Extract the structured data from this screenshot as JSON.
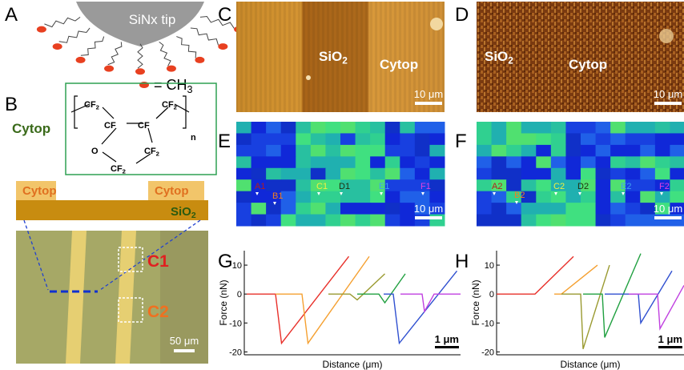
{
  "panels": {
    "A": {
      "letter": "A",
      "tip": "SiNx tip",
      "legend": {
        "text": "= CH",
        "sub": "3"
      }
    },
    "B": {
      "letter": "B",
      "molecule_name": "Cytop",
      "structure": [
        {
          "text": "CF",
          "sub": "2"
        },
        {
          "text": "CF",
          "sub": "2"
        },
        {
          "text": "CF"
        },
        {
          "text": "CF"
        },
        {
          "text": "O"
        },
        {
          "text": "CF",
          "sub": "2"
        },
        {
          "text": "CF",
          "sub": "2"
        },
        {
          "text": "n"
        }
      ],
      "stack": {
        "left": "Cytop",
        "right": "Cytop",
        "substrate": {
          "text": "SiO",
          "sub": "2"
        }
      },
      "micrograph": {
        "box1": "C1",
        "box2": "C2",
        "scale": "50 μm"
      }
    },
    "C": {
      "letter": "C",
      "left": {
        "text": "SiO",
        "sub": "2"
      },
      "right": "Cytop",
      "scale": "10 μm"
    },
    "D": {
      "letter": "D",
      "left": {
        "text": "SiO",
        "sub": "2"
      },
      "right": "Cytop",
      "scale": "10 μm"
    },
    "E": {
      "letter": "E",
      "markers": [
        "A1",
        "B1",
        "C1",
        "D1",
        "E1",
        "F1"
      ],
      "scale": "10 μm"
    },
    "F": {
      "letter": "F",
      "markers": [
        "A2",
        "B2",
        "C2",
        "D2",
        "E2",
        "F2"
      ],
      "scale": "10 μm"
    },
    "G": {
      "letter": "G"
    },
    "H": {
      "letter": "H"
    }
  },
  "chart_data": [
    {
      "type": "line",
      "ylabel": "Force (nN)",
      "xlabel": "Distance (μm)",
      "scale_bar": "1 μm",
      "xlim": [
        0,
        9
      ],
      "ylim": [
        -21,
        15
      ],
      "yticks": [
        10,
        0,
        -10,
        -20
      ],
      "series": [
        {
          "color": "#e8302a",
          "x": [
            0.1,
            1.3,
            1.55,
            4.35
          ],
          "values": [
            0,
            0,
            -17,
            13
          ]
        },
        {
          "color": "#f5a030",
          "x": [
            1.3,
            2.4,
            2.65,
            5.2
          ],
          "values": [
            0,
            0,
            -17,
            13
          ]
        },
        {
          "color": "#9a9a30",
          "x": [
            3.5,
            4.4,
            4.7,
            5.85
          ],
          "values": [
            0,
            0,
            -2,
            7
          ]
        },
        {
          "color": "#20a040",
          "x": [
            4.7,
            5.6,
            5.85,
            6.7
          ],
          "values": [
            0,
            0,
            -3,
            7
          ]
        },
        {
          "color": "#3050d0",
          "x": [
            5.8,
            6.2,
            6.45,
            8.85
          ],
          "values": [
            0,
            0,
            -17,
            8
          ]
        },
        {
          "color": "#c040e0",
          "x": [
            6.5,
            7.4,
            7.5,
            7.9,
            9
          ],
          "values": [
            0,
            0,
            -6,
            0,
            0
          ]
        }
      ]
    },
    {
      "type": "line",
      "ylabel": "Force (nN)",
      "xlabel": "Distance (μm)",
      "scale_bar": "1 μm",
      "xlim": [
        0,
        7.8
      ],
      "ylim": [
        -21,
        15
      ],
      "yticks": [
        10,
        0,
        -10,
        -20
      ],
      "series": [
        {
          "color": "#e8302a",
          "x": [
            0,
            1.6,
            3.2
          ],
          "values": [
            0,
            0,
            13
          ]
        },
        {
          "color": "#f5a030",
          "x": [
            2.4,
            2.7,
            4.2
          ],
          "values": [
            0,
            0,
            10
          ]
        },
        {
          "color": "#9a9a30",
          "x": [
            2.7,
            3.5,
            3.6,
            4.7
          ],
          "values": [
            0,
            0,
            -19,
            10
          ]
        },
        {
          "color": "#20a040",
          "x": [
            3.6,
            4.4,
            4.5,
            6.0
          ],
          "values": [
            0,
            0,
            -15,
            14
          ]
        },
        {
          "color": "#3050d0",
          "x": [
            4.5,
            5.9,
            6.0,
            7.3
          ],
          "values": [
            0,
            0,
            -10,
            8
          ]
        },
        {
          "color": "#c040e0",
          "x": [
            5.5,
            6.7,
            6.8,
            7.8
          ],
          "values": [
            0,
            0,
            -12,
            3
          ]
        }
      ]
    }
  ]
}
